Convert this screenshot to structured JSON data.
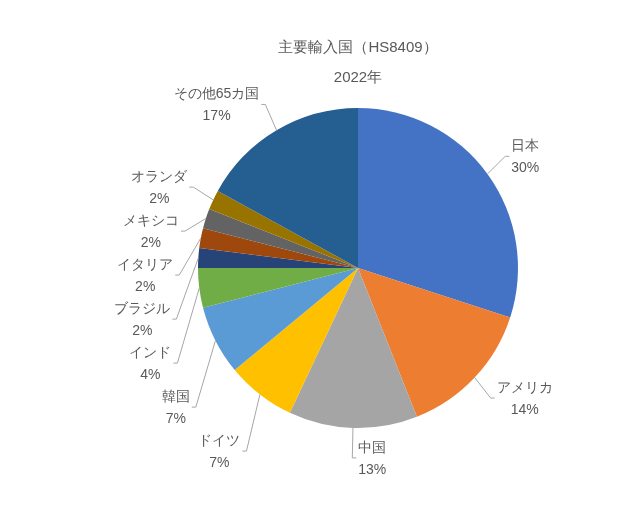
{
  "chart_data": {
    "type": "pie",
    "title": "主要輸入国（HS8409）",
    "subtitle": "2022年",
    "categories": [
      "日本",
      "アメリカ",
      "中国",
      "ドイツ",
      "韓国",
      "インド",
      "ブラジル",
      "イタリア",
      "メキシコ",
      "オランダ",
      "その他65カ国"
    ],
    "values": [
      30,
      14,
      13,
      7,
      7,
      4,
      2,
      2,
      2,
      2,
      17
    ],
    "value_labels": [
      "30%",
      "14%",
      "13%",
      "7%",
      "7%",
      "4%",
      "2%",
      "2%",
      "2%",
      "2%",
      "17%"
    ],
    "colors": [
      "#4472c4",
      "#ed7d31",
      "#a5a5a5",
      "#ffc000",
      "#5b9bd5",
      "#70ad47",
      "#264478",
      "#9e480e",
      "#636363",
      "#997300",
      "#255e91"
    ],
    "data_labels": true
  }
}
